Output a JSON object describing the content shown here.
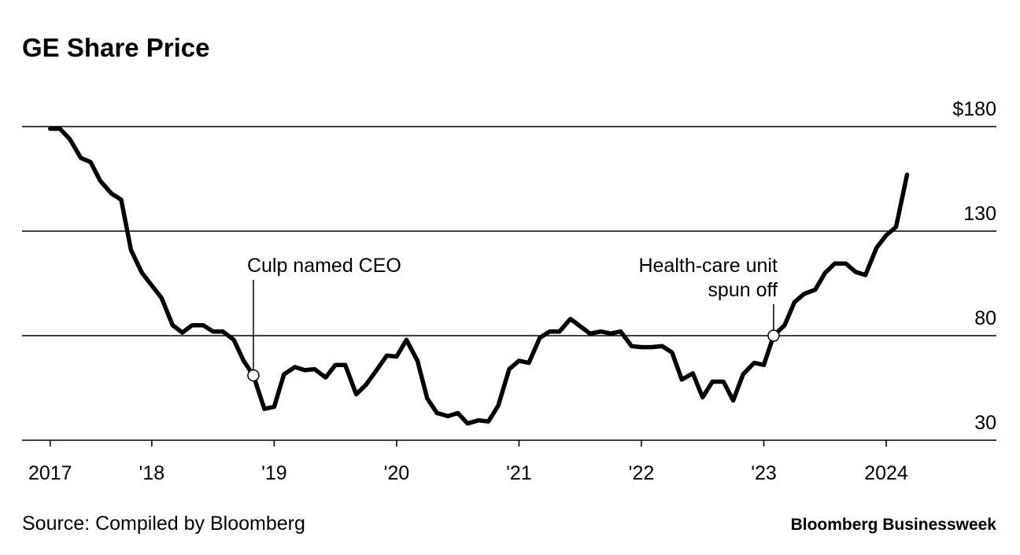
{
  "chart_data": {
    "type": "line",
    "title": "GE Share Price",
    "source": "Source: Compiled by Bloomberg",
    "credit": "Bloomberg Businessweek",
    "x": [
      2017.17,
      2017.25,
      2017.33,
      2017.42,
      2017.5,
      2017.58,
      2017.67,
      2017.75,
      2017.83,
      2017.92,
      2018.0,
      2018.08,
      2018.17,
      2018.25,
      2018.33,
      2018.42,
      2018.5,
      2018.58,
      2018.67,
      2018.75,
      2018.83,
      2018.92,
      2019.0,
      2019.08,
      2019.17,
      2019.25,
      2019.33,
      2019.42,
      2019.5,
      2019.58,
      2019.67,
      2019.75,
      2019.83,
      2019.92,
      2020.0,
      2020.08,
      2020.17,
      2020.25,
      2020.33,
      2020.42,
      2020.5,
      2020.58,
      2020.67,
      2020.75,
      2020.83,
      2020.92,
      2021.0,
      2021.08,
      2021.17,
      2021.25,
      2021.33,
      2021.42,
      2021.5,
      2021.58,
      2021.67,
      2021.75,
      2021.83,
      2021.92,
      2022.0,
      2022.08,
      2022.17,
      2022.25,
      2022.33,
      2022.42,
      2022.5,
      2022.58,
      2022.67,
      2022.75,
      2022.83,
      2022.92,
      2023.0,
      2023.08,
      2023.17,
      2023.25,
      2023.33,
      2023.42,
      2023.5,
      2023.58,
      2023.67,
      2023.75,
      2023.83,
      2023.92,
      2024.0,
      2024.08,
      2024.17
    ],
    "series": [
      {
        "color": "#000000",
        "values": [
          179,
          179,
          174,
          165,
          163,
          154,
          148,
          145,
          121,
          110,
          104,
          98,
          85,
          81.5,
          85,
          85,
          82,
          82,
          78,
          68,
          61,
          45,
          46,
          61.5,
          65,
          63.5,
          64,
          60,
          66,
          66,
          52,
          56.5,
          63,
          70.5,
          70,
          78,
          68,
          50,
          43,
          41.5,
          43,
          38,
          39.5,
          39,
          46.5,
          64,
          68,
          67,
          79,
          82,
          82,
          88,
          84.5,
          81,
          82,
          81,
          82,
          75,
          74.5,
          74.5,
          75,
          72,
          59,
          62,
          50.5,
          58,
          58,
          49,
          61.5,
          67,
          66,
          80,
          85,
          96,
          100,
          102,
          110,
          114.5,
          114.5,
          110.5,
          109,
          122,
          128,
          132,
          157
        ]
      }
    ],
    "xlim": [
      2016.94,
      2024.9
    ],
    "xticks": [
      {
        "value": 2017.17,
        "label": "2017"
      },
      {
        "value": 2018,
        "label": "'18"
      },
      {
        "value": 2019,
        "label": "'19"
      },
      {
        "value": 2020,
        "label": "'20"
      },
      {
        "value": 2021,
        "label": "'21"
      },
      {
        "value": 2022,
        "label": "'22"
      },
      {
        "value": 2023,
        "label": "'23"
      },
      {
        "value": 2024,
        "label": "2024"
      }
    ],
    "ylim": [
      30,
      180
    ],
    "yticks": [
      30,
      80,
      130,
      {
        "value": 180,
        "label": "$180"
      }
    ],
    "grid": true,
    "annotations": [
      {
        "lines": [
          "Culp named CEO"
        ],
        "x": 2018.83
      },
      {
        "lines": [
          "Health-care unit",
          "spun off"
        ],
        "x": 2023.08
      }
    ]
  }
}
